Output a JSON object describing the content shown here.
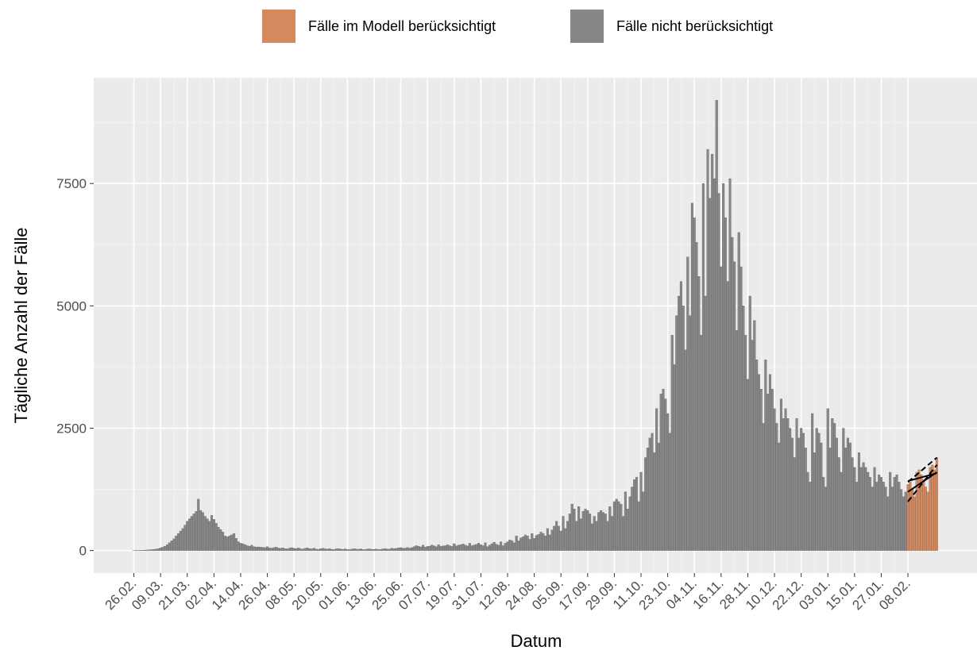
{
  "chart_data": {
    "type": "bar",
    "ylabel": "Tägliche Anzahl der Fälle",
    "xlabel": "Datum",
    "ylim": [
      -460,
      9660
    ],
    "yticks": [
      0,
      2500,
      5000,
      7500
    ],
    "grid": true,
    "legend": "top",
    "categories": [
      "26.02.",
      null,
      null,
      null,
      null,
      null,
      null,
      null,
      null,
      null,
      null,
      null,
      "09.03.",
      null,
      null,
      null,
      null,
      null,
      null,
      null,
      null,
      null,
      null,
      null,
      "21.03.",
      null,
      null,
      null,
      null,
      null,
      null,
      null,
      null,
      null,
      null,
      null,
      "02.04.",
      null,
      null,
      null,
      null,
      null,
      null,
      null,
      null,
      null,
      null,
      null,
      "14.04.",
      null,
      null,
      null,
      null,
      null,
      null,
      null,
      null,
      null,
      null,
      null,
      "26.04.",
      null,
      null,
      null,
      null,
      null,
      null,
      null,
      null,
      null,
      null,
      null,
      "08.05.",
      null,
      null,
      null,
      null,
      null,
      null,
      null,
      null,
      null,
      null,
      null,
      "20.05.",
      null,
      null,
      null,
      null,
      null,
      null,
      null,
      null,
      null,
      null,
      null,
      "01.06.",
      null,
      null,
      null,
      null,
      null,
      null,
      null,
      null,
      null,
      null,
      null,
      "13.06.",
      null,
      null,
      null,
      null,
      null,
      null,
      null,
      null,
      null,
      null,
      null,
      "25.06.",
      null,
      null,
      null,
      null,
      null,
      null,
      null,
      null,
      null,
      null,
      null,
      "07.07.",
      null,
      null,
      null,
      null,
      null,
      null,
      null,
      null,
      null,
      null,
      null,
      "19.07.",
      null,
      null,
      null,
      null,
      null,
      null,
      null,
      null,
      null,
      null,
      null,
      "31.07.",
      null,
      null,
      null,
      null,
      null,
      null,
      null,
      null,
      null,
      null,
      null,
      "12.08.",
      null,
      null,
      null,
      null,
      null,
      null,
      null,
      null,
      null,
      null,
      null,
      "24.08.",
      null,
      null,
      null,
      null,
      null,
      null,
      null,
      null,
      null,
      null,
      null,
      "05.09.",
      null,
      null,
      null,
      null,
      null,
      null,
      null,
      null,
      null,
      null,
      null,
      "17.09.",
      null,
      null,
      null,
      null,
      null,
      null,
      null,
      null,
      null,
      null,
      null,
      "29.09.",
      null,
      null,
      null,
      null,
      null,
      null,
      null,
      null,
      null,
      null,
      null,
      "11.10.",
      null,
      null,
      null,
      null,
      null,
      null,
      null,
      null,
      null,
      null,
      null,
      "23.10.",
      null,
      null,
      null,
      null,
      null,
      null,
      null,
      null,
      null,
      null,
      null,
      "04.11.",
      null,
      null,
      null,
      null,
      null,
      null,
      null,
      null,
      null,
      null,
      null,
      "16.11.",
      null,
      null,
      null,
      null,
      null,
      null,
      null,
      null,
      null,
      null,
      null,
      "28.11.",
      null,
      null,
      null,
      null,
      null,
      null,
      null,
      null,
      null,
      null,
      null,
      "10.12.",
      null,
      null,
      null,
      null,
      null,
      null,
      null,
      null,
      null,
      null,
      null,
      "22.12.",
      null,
      null,
      null,
      null,
      null,
      null,
      null,
      null,
      null,
      null,
      null,
      "03.01.",
      null,
      null,
      null,
      null,
      null,
      null,
      null,
      null,
      null,
      null,
      null,
      "15.01.",
      null,
      null,
      null,
      null,
      null,
      null,
      null,
      null,
      null,
      null,
      null,
      "27.01.",
      null,
      null,
      null,
      null,
      null,
      null,
      null,
      null,
      null,
      null,
      null,
      "08.02.",
      null,
      null,
      null,
      null,
      null,
      null,
      null,
      null,
      null,
      null,
      null,
      null,
      null
    ],
    "series": [
      {
        "name": "Fälle im Modell berücksichtigt",
        "color": "#d4895e",
        "values": [
          null,
          null,
          null,
          null,
          null,
          null,
          null,
          null,
          null,
          null,
          null,
          null,
          null,
          null,
          null,
          null,
          null,
          null,
          null,
          null,
          null,
          null,
          null,
          null,
          null,
          null,
          null,
          null,
          null,
          null,
          null,
          null,
          null,
          null,
          null,
          null,
          null,
          null,
          null,
          null,
          null,
          null,
          null,
          null,
          null,
          null,
          null,
          null,
          null,
          null,
          null,
          null,
          null,
          null,
          null,
          null,
          null,
          null,
          null,
          null,
          null,
          null,
          null,
          null,
          null,
          null,
          null,
          null,
          null,
          null,
          null,
          null,
          null,
          null,
          null,
          null,
          null,
          null,
          null,
          null,
          null,
          null,
          null,
          null,
          null,
          null,
          null,
          null,
          null,
          null,
          null,
          null,
          null,
          null,
          null,
          null,
          null,
          null,
          null,
          null,
          null,
          null,
          null,
          null,
          null,
          null,
          null,
          null,
          null,
          null,
          null,
          null,
          null,
          null,
          null,
          null,
          null,
          null,
          null,
          null,
          null,
          null,
          null,
          null,
          null,
          null,
          null,
          null,
          null,
          null,
          null,
          null,
          null,
          null,
          null,
          null,
          null,
          null,
          null,
          null,
          null,
          null,
          null,
          null,
          null,
          null,
          null,
          null,
          null,
          null,
          null,
          null,
          null,
          null,
          null,
          null,
          null,
          null,
          null,
          null,
          null,
          null,
          null,
          null,
          null,
          null,
          null,
          null,
          null,
          null,
          null,
          null,
          null,
          null,
          null,
          null,
          null,
          null,
          null,
          null,
          null,
          null,
          null,
          null,
          null,
          null,
          null,
          null,
          null,
          null,
          null,
          null,
          null,
          null,
          null,
          null,
          null,
          null,
          null,
          null,
          null,
          null,
          null,
          null,
          null,
          null,
          null,
          null,
          null,
          null,
          null,
          null,
          null,
          null,
          null,
          null,
          null,
          null,
          null,
          null,
          null,
          null,
          null,
          null,
          null,
          null,
          null,
          null,
          null,
          null,
          null,
          null,
          null,
          null,
          null,
          null,
          null,
          null,
          null,
          null,
          null,
          null,
          null,
          null,
          null,
          null,
          null,
          null,
          null,
          null,
          null,
          null,
          null,
          null,
          null,
          null,
          null,
          null,
          null,
          null,
          null,
          null,
          null,
          null,
          null,
          null,
          null,
          null,
          null,
          null,
          null,
          null,
          null,
          null,
          null,
          null,
          null,
          null,
          null,
          null,
          null,
          null,
          null,
          null,
          null,
          null,
          null,
          null,
          null,
          null,
          null,
          null,
          null,
          null,
          null,
          null,
          null,
          null,
          null,
          null,
          null,
          null,
          null,
          null,
          null,
          null,
          null,
          null,
          null,
          null,
          null,
          null,
          null,
          null,
          null,
          null,
          null,
          null,
          null,
          null,
          null,
          null,
          null,
          null,
          null,
          null,
          null,
          null,
          null,
          null,
          null,
          null,
          null,
          null,
          null,
          null,
          null,
          null,
          null,
          null,
          null,
          null,
          null,
          null,
          null,
          null,
          null,
          null,
          1350,
          1400,
          1250,
          1100,
          1600,
          1650,
          1550,
          1450,
          1300,
          1200,
          1700,
          1750,
          1650,
          1900
        ]
      },
      {
        "name": "Fälle nicht berücksichtigt",
        "color": "#878787",
        "values": [
          2,
          5,
          3,
          8,
          6,
          10,
          12,
          15,
          20,
          25,
          30,
          40,
          55,
          70,
          90,
          120,
          160,
          200,
          240,
          300,
          350,
          400,
          450,
          520,
          600,
          650,
          700,
          750,
          800,
          1050,
          820,
          780,
          700,
          650,
          600,
          720,
          640,
          560,
          480,
          430,
          380,
          300,
          280,
          300,
          320,
          350,
          250,
          180,
          150,
          140,
          120,
          100,
          90,
          110,
          80,
          70,
          75,
          70,
          65,
          60,
          80,
          55,
          50,
          60,
          70,
          50,
          45,
          55,
          40,
          35,
          50,
          60,
          45,
          40,
          55,
          35,
          30,
          45,
          55,
          40,
          35,
          50,
          30,
          25,
          40,
          45,
          35,
          30,
          40,
          25,
          20,
          35,
          40,
          30,
          25,
          35,
          20,
          20,
          30,
          40,
          30,
          25,
          35,
          20,
          20,
          30,
          35,
          25,
          25,
          30,
          20,
          25,
          35,
          40,
          30,
          30,
          50,
          40,
          45,
          55,
          60,
          50,
          45,
          65,
          50,
          60,
          80,
          100,
          90,
          75,
          110,
          70,
          85,
          90,
          115,
          95,
          80,
          120,
          85,
          95,
          100,
          120,
          100,
          85,
          140,
          95,
          110,
          120,
          135,
          110,
          95,
          150,
          100,
          115,
          130,
          150,
          120,
          100,
          160,
          80,
          110,
          140,
          170,
          130,
          110,
          180,
          100,
          150,
          180,
          220,
          200,
          160,
          300,
          200,
          260,
          280,
          320,
          300,
          230,
          350,
          250,
          310,
          330,
          380,
          350,
          300,
          450,
          320,
          420,
          500,
          600,
          500,
          400,
          700,
          450,
          600,
          750,
          950,
          850,
          600,
          900,
          650,
          800,
          850,
          820,
          750,
          550,
          700,
          600,
          780,
          820,
          780,
          750,
          600,
          900,
          700,
          1000,
          1050,
          1000,
          950,
          700,
          1200,
          850,
          1100,
          1300,
          1450,
          1500,
          1000,
          1600,
          1200,
          1900,
          2100,
          2300,
          2400,
          2000,
          2900,
          2200,
          3200,
          3300,
          3100,
          2800,
          2400,
          4400,
          3800,
          4800,
          5200,
          5500,
          5000,
          4100,
          6000,
          4800,
          7100,
          6800,
          6300,
          5600,
          4400,
          7500,
          5200,
          8200,
          7200,
          8100,
          7600,
          9200,
          7300,
          5800,
          7500,
          6800,
          5500,
          7600,
          6400,
          5900,
          4500,
          6500,
          5800,
          5000,
          4400,
          3500,
          5200,
          4300,
          4700,
          3900,
          3600,
          3300,
          2600,
          3900,
          3200,
          3600,
          3300,
          2900,
          2600,
          2200,
          3100,
          2700,
          2900,
          2700,
          2500,
          2300,
          1900,
          2700,
          2300,
          2500,
          2400,
          2100,
          1600,
          1400,
          2800,
          2000,
          2500,
          2400,
          2200,
          1500,
          1300,
          2900,
          2100,
          2700,
          2600,
          2300,
          1900,
          1600,
          2500,
          2100,
          2300,
          2200,
          1900,
          1700,
          1400,
          2000,
          1700,
          1800,
          1700,
          1600,
          1500,
          1300,
          1700,
          1400,
          1550,
          1500,
          1400,
          1300,
          1100,
          1600,
          1300,
          1500,
          1550,
          1400,
          1250,
          1100,
          1200,
          null,
          null,
          null,
          null,
          null,
          null,
          null,
          null,
          null,
          null,
          null,
          null,
          null,
          null
        ]
      }
    ],
    "fit_lines": [
      {
        "dashed": true,
        "values": [
          1000,
          1750
        ]
      },
      {
        "dashed": false,
        "values": [
          1200,
          1600
        ]
      },
      {
        "dashed": false,
        "values": [
          1420,
          1580
        ]
      },
      {
        "dashed": true,
        "values": [
          1400,
          1900
        ]
      }
    ]
  }
}
